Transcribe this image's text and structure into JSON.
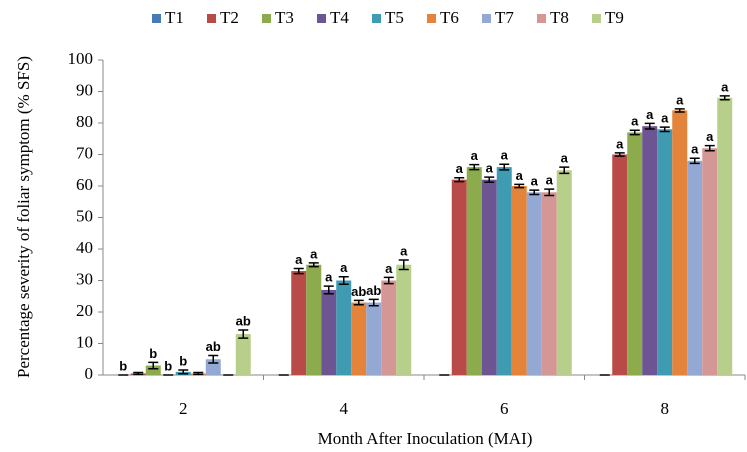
{
  "chart_data": {
    "type": "bar",
    "y_label": "Percentage severity of foliar symptom (% SFS)",
    "x_label": "Month After Inoculation (MAI)",
    "categories": [
      "2",
      "4",
      "6",
      "8"
    ],
    "ylim": [
      0,
      100
    ],
    "yticks": [
      0,
      10,
      20,
      30,
      40,
      50,
      60,
      70,
      80,
      90,
      100
    ],
    "series": [
      {
        "name": "T1",
        "color": "#4a7ab5",
        "values": [
          0,
          0,
          0,
          0
        ],
        "errors": [
          0,
          0,
          0,
          0
        ],
        "letters": [
          "b",
          null,
          null,
          null
        ]
      },
      {
        "name": "T2",
        "color": "#b84a47",
        "values": [
          0.5,
          33,
          62,
          70
        ],
        "errors": [
          0.3,
          0.8,
          0.6,
          0.5
        ],
        "letters": [
          null,
          "a",
          "a",
          "a"
        ]
      },
      {
        "name": "T3",
        "color": "#8bab4d",
        "values": [
          3,
          35,
          66,
          77
        ],
        "errors": [
          1,
          0.6,
          0.8,
          0.7
        ],
        "letters": [
          "b",
          "a",
          "a",
          "a"
        ]
      },
      {
        "name": "T4",
        "color": "#6d5593",
        "values": [
          0,
          27,
          62,
          79
        ],
        "errors": [
          0,
          1.2,
          0.8,
          0.9
        ],
        "letters": [
          "b",
          "a",
          "a",
          "a"
        ]
      },
      {
        "name": "T5",
        "color": "#3e9bb2",
        "values": [
          1,
          30,
          66,
          78
        ],
        "errors": [
          0.6,
          1.2,
          0.9,
          0.7
        ],
        "letters": [
          "b",
          "a",
          "a",
          "a"
        ]
      },
      {
        "name": "T6",
        "color": "#e3843a",
        "values": [
          0.5,
          23,
          60,
          84
        ],
        "errors": [
          0.3,
          0.7,
          0.5,
          0.5
        ],
        "letters": [
          null,
          "ab",
          "a",
          "a"
        ]
      },
      {
        "name": "T7",
        "color": "#93a9d4",
        "values": [
          5,
          23,
          58,
          68
        ],
        "errors": [
          1.2,
          1,
          0.7,
          0.8
        ],
        "letters": [
          "ab",
          "ab",
          "a",
          "a"
        ]
      },
      {
        "name": "T8",
        "color": "#d59795",
        "values": [
          0,
          30,
          58,
          72
        ],
        "errors": [
          0,
          1,
          1,
          0.8
        ],
        "letters": [
          null,
          "a",
          "a",
          "a"
        ]
      },
      {
        "name": "T9",
        "color": "#b7cf8a",
        "values": [
          13,
          35,
          65,
          88
        ],
        "errors": [
          1.3,
          1.5,
          1,
          0.6
        ],
        "letters": [
          "ab",
          "a",
          "a",
          "a"
        ]
      }
    ]
  }
}
